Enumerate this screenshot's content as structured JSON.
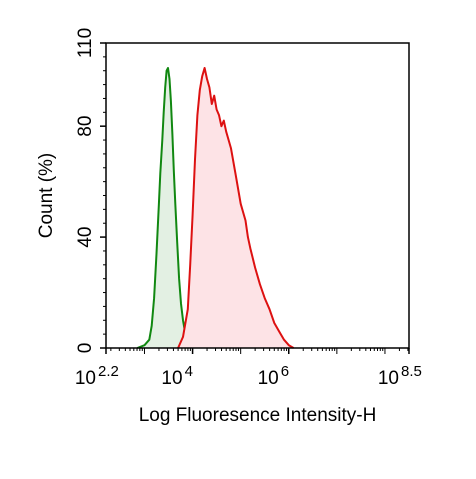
{
  "chart_data": {
    "type": "area",
    "xlabel": "Log Fluoresence Intensity-H",
    "ylabel": "Count  (%)",
    "x_scale": "log10",
    "xlim_exponent": [
      2.2,
      8.5
    ],
    "ylim": [
      0,
      110
    ],
    "x_ticks": [
      {
        "base": "10",
        "exp": "2.2",
        "value_exponent": 2.2
      },
      {
        "base": "10",
        "exp": "4",
        "value_exponent": 4
      },
      {
        "base": "10",
        "exp": "6",
        "value_exponent": 6
      },
      {
        "base": "10",
        "exp": "8.5",
        "value_exponent": 8.5
      }
    ],
    "y_ticks": [
      "0",
      "40",
      "80",
      "110"
    ],
    "y_tick_values": [
      0,
      40,
      80,
      110
    ],
    "grid": false,
    "legend": "none",
    "series": [
      {
        "color": "#118811",
        "fill": "#e3f0e3",
        "x_exponent": [
          2.85,
          3.0,
          3.1,
          3.15,
          3.2,
          3.25,
          3.3,
          3.33,
          3.37,
          3.4,
          3.43,
          3.46,
          3.49,
          3.52,
          3.55,
          3.58,
          3.61,
          3.64,
          3.68,
          3.72,
          3.76,
          3.8,
          3.85,
          3.9,
          3.95,
          4.0
        ],
        "y": [
          0,
          1,
          3,
          8,
          18,
          34,
          52,
          63,
          75,
          85,
          94,
          100,
          101,
          97,
          89,
          77,
          64,
          52,
          38,
          25,
          16,
          10,
          5,
          3,
          1,
          0
        ]
      },
      {
        "color": "#dd1111",
        "fill": "#fde3e6",
        "x_exponent": [
          3.7,
          3.8,
          3.9,
          3.95,
          4.0,
          4.05,
          4.1,
          4.15,
          4.2,
          4.25,
          4.3,
          4.35,
          4.4,
          4.45,
          4.5,
          4.55,
          4.6,
          4.65,
          4.7,
          4.75,
          4.8,
          4.9,
          5.0,
          5.1,
          5.15,
          5.2,
          5.3,
          5.4,
          5.5,
          5.6,
          5.7,
          5.8,
          5.9,
          6.0,
          6.1
        ],
        "y": [
          0,
          4,
          14,
          30,
          48,
          68,
          84,
          93,
          98,
          101,
          97,
          94,
          88,
          91,
          86,
          84,
          80,
          82,
          78,
          75,
          72,
          62,
          52,
          46,
          40,
          36,
          29,
          23,
          18,
          14,
          9,
          6,
          3,
          1,
          0
        ]
      }
    ]
  }
}
